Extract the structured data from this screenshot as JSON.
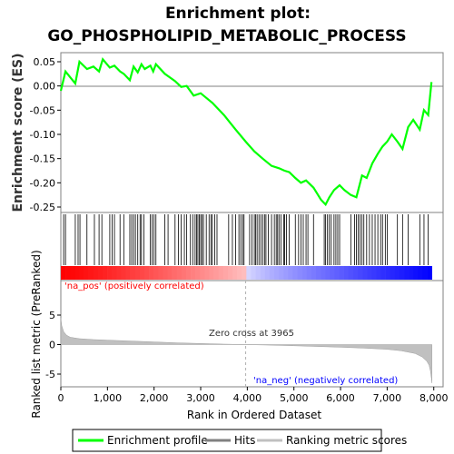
{
  "title_line1": "Enrichment plot:",
  "title_line2": "GO_PHOSPHOLIPID_METABOLIC_PROCESS",
  "colors": {
    "es_line": "#00ff00",
    "hits": "#000000",
    "metric": "#c0c0c0",
    "pos_label": "#ff0000",
    "neg_label": "#0000ff",
    "zero_line": "#c0c0c0"
  },
  "chart_data": [
    {
      "type": "line",
      "name": "enrichment-profile",
      "ylabel": "Enrichment score (ES)",
      "xlim": [
        0,
        8200
      ],
      "ylim": [
        -0.265,
        0.07
      ],
      "yticks": [
        0.05,
        0.0,
        -0.05,
        -0.1,
        -0.15,
        -0.2,
        -0.25
      ],
      "ytick_labels": [
        "0.05",
        "0.00",
        "-0.05",
        "-0.10",
        "-0.15",
        "-0.20",
        "-0.25"
      ],
      "x": [
        0,
        100,
        310,
        400,
        560,
        700,
        820,
        900,
        1050,
        1150,
        1270,
        1350,
        1480,
        1560,
        1650,
        1730,
        1800,
        1920,
        1980,
        2040,
        2230,
        2450,
        2580,
        2700,
        2850,
        3000,
        3250,
        3500,
        3750,
        3965,
        4150,
        4330,
        4520,
        4680,
        4800,
        4900,
        5030,
        5150,
        5260,
        5420,
        5580,
        5680,
        5760,
        5860,
        5980,
        6080,
        6220,
        6340,
        6460,
        6560,
        6680,
        6800,
        6900,
        7000,
        7100,
        7220,
        7330,
        7450,
        7560,
        7700,
        7790,
        7880,
        7950
      ],
      "values": [
        -0.01,
        0.03,
        0.005,
        0.05,
        0.035,
        0.04,
        0.03,
        0.055,
        0.038,
        0.042,
        0.03,
        0.025,
        0.012,
        0.04,
        0.028,
        0.045,
        0.035,
        0.042,
        0.03,
        0.045,
        0.025,
        0.01,
        -0.002,
        0.0,
        -0.02,
        -0.015,
        -0.035,
        -0.06,
        -0.09,
        -0.115,
        -0.135,
        -0.15,
        -0.165,
        -0.17,
        -0.175,
        -0.178,
        -0.19,
        -0.2,
        -0.195,
        -0.21,
        -0.235,
        -0.245,
        -0.23,
        -0.215,
        -0.205,
        -0.215,
        -0.225,
        -0.23,
        -0.185,
        -0.19,
        -0.16,
        -0.14,
        -0.125,
        -0.115,
        -0.1,
        -0.115,
        -0.13,
        -0.085,
        -0.07,
        -0.09,
        -0.05,
        -0.06,
        0.008
      ]
    },
    {
      "type": "heatmap",
      "name": "hits-and-ranking-bar",
      "xlim": [
        0,
        8200
      ],
      "hit_positions": [
        60,
        100,
        310,
        370,
        410,
        560,
        720,
        820,
        880,
        1050,
        1100,
        1150,
        1270,
        1350,
        1480,
        1520,
        1560,
        1600,
        1650,
        1700,
        1730,
        1780,
        1920,
        1960,
        2000,
        2040,
        2230,
        2300,
        2450,
        2520,
        2580,
        2650,
        2700,
        2780,
        2830,
        2880,
        2910,
        2940,
        2970,
        3000,
        3030,
        3060,
        3120,
        3180,
        3220,
        3250,
        3300,
        3350,
        3600,
        3680,
        3750,
        3820,
        3860,
        3900,
        3930,
        4050,
        4100,
        4150,
        4180,
        4210,
        4250,
        4290,
        4330,
        4370,
        4400,
        4450,
        4520,
        4580,
        4620,
        4650,
        4680,
        4720,
        4780,
        4800,
        4840,
        4900,
        5030,
        5100,
        5150,
        5200,
        5260,
        5300,
        5420,
        5650,
        5680,
        5720,
        5760,
        5800,
        5860,
        5900,
        5940,
        5980,
        6220,
        6300,
        6340,
        6380,
        6420,
        6460,
        6500,
        6560,
        6620,
        6680,
        6740,
        6800,
        6860,
        6900,
        6960,
        7000,
        7220,
        7330,
        7450,
        7700,
        7790,
        7880
      ]
    },
    {
      "type": "area",
      "name": "ranked-list-metric",
      "xlabel": "Rank in Ordered Dataset",
      "ylabel": "Ranked list metric (PreRanked)",
      "xlim": [
        0,
        8200
      ],
      "ylim": [
        -6.6,
        8.8
      ],
      "yticks": [
        5,
        0,
        -5
      ],
      "ytick_labels": [
        "5",
        "0",
        "-5"
      ],
      "xticks": [
        0,
        1000,
        2000,
        3000,
        4000,
        5000,
        6000,
        7000,
        8000
      ],
      "xtick_labels": [
        "0",
        "1,000",
        "2,000",
        "3,000",
        "4,000",
        "5,000",
        "6,000",
        "7,000",
        "8,000"
      ],
      "x": [
        0,
        20,
        60,
        120,
        200,
        400,
        700,
        1000,
        1500,
        2000,
        2500,
        3000,
        3500,
        3965,
        4500,
        5000,
        5500,
        6000,
        6500,
        7000,
        7300,
        7600,
        7750,
        7850,
        7900,
        7930,
        7950,
        7960
      ],
      "values": [
        4.5,
        3.2,
        2.2,
        1.6,
        1.25,
        1.0,
        0.85,
        0.75,
        0.6,
        0.45,
        0.3,
        0.18,
        0.08,
        0.0,
        -0.1,
        -0.2,
        -0.32,
        -0.45,
        -0.6,
        -0.8,
        -1.05,
        -1.5,
        -2.1,
        -2.8,
        -3.5,
        -4.5,
        -5.8,
        -6.5
      ],
      "zero_cross_label": "Zero cross at 3965",
      "zero_cross_x": 3965,
      "pos_label": "'na_pos' (positively correlated)",
      "neg_label": "'na_neg' (negatively correlated)"
    }
  ],
  "legend": {
    "items": [
      {
        "label": "Enrichment profile",
        "color": "#00ff00"
      },
      {
        "label": "Hits",
        "color": "#808080"
      },
      {
        "label": "Ranking metric scores",
        "color": "#c0c0c0"
      }
    ]
  }
}
